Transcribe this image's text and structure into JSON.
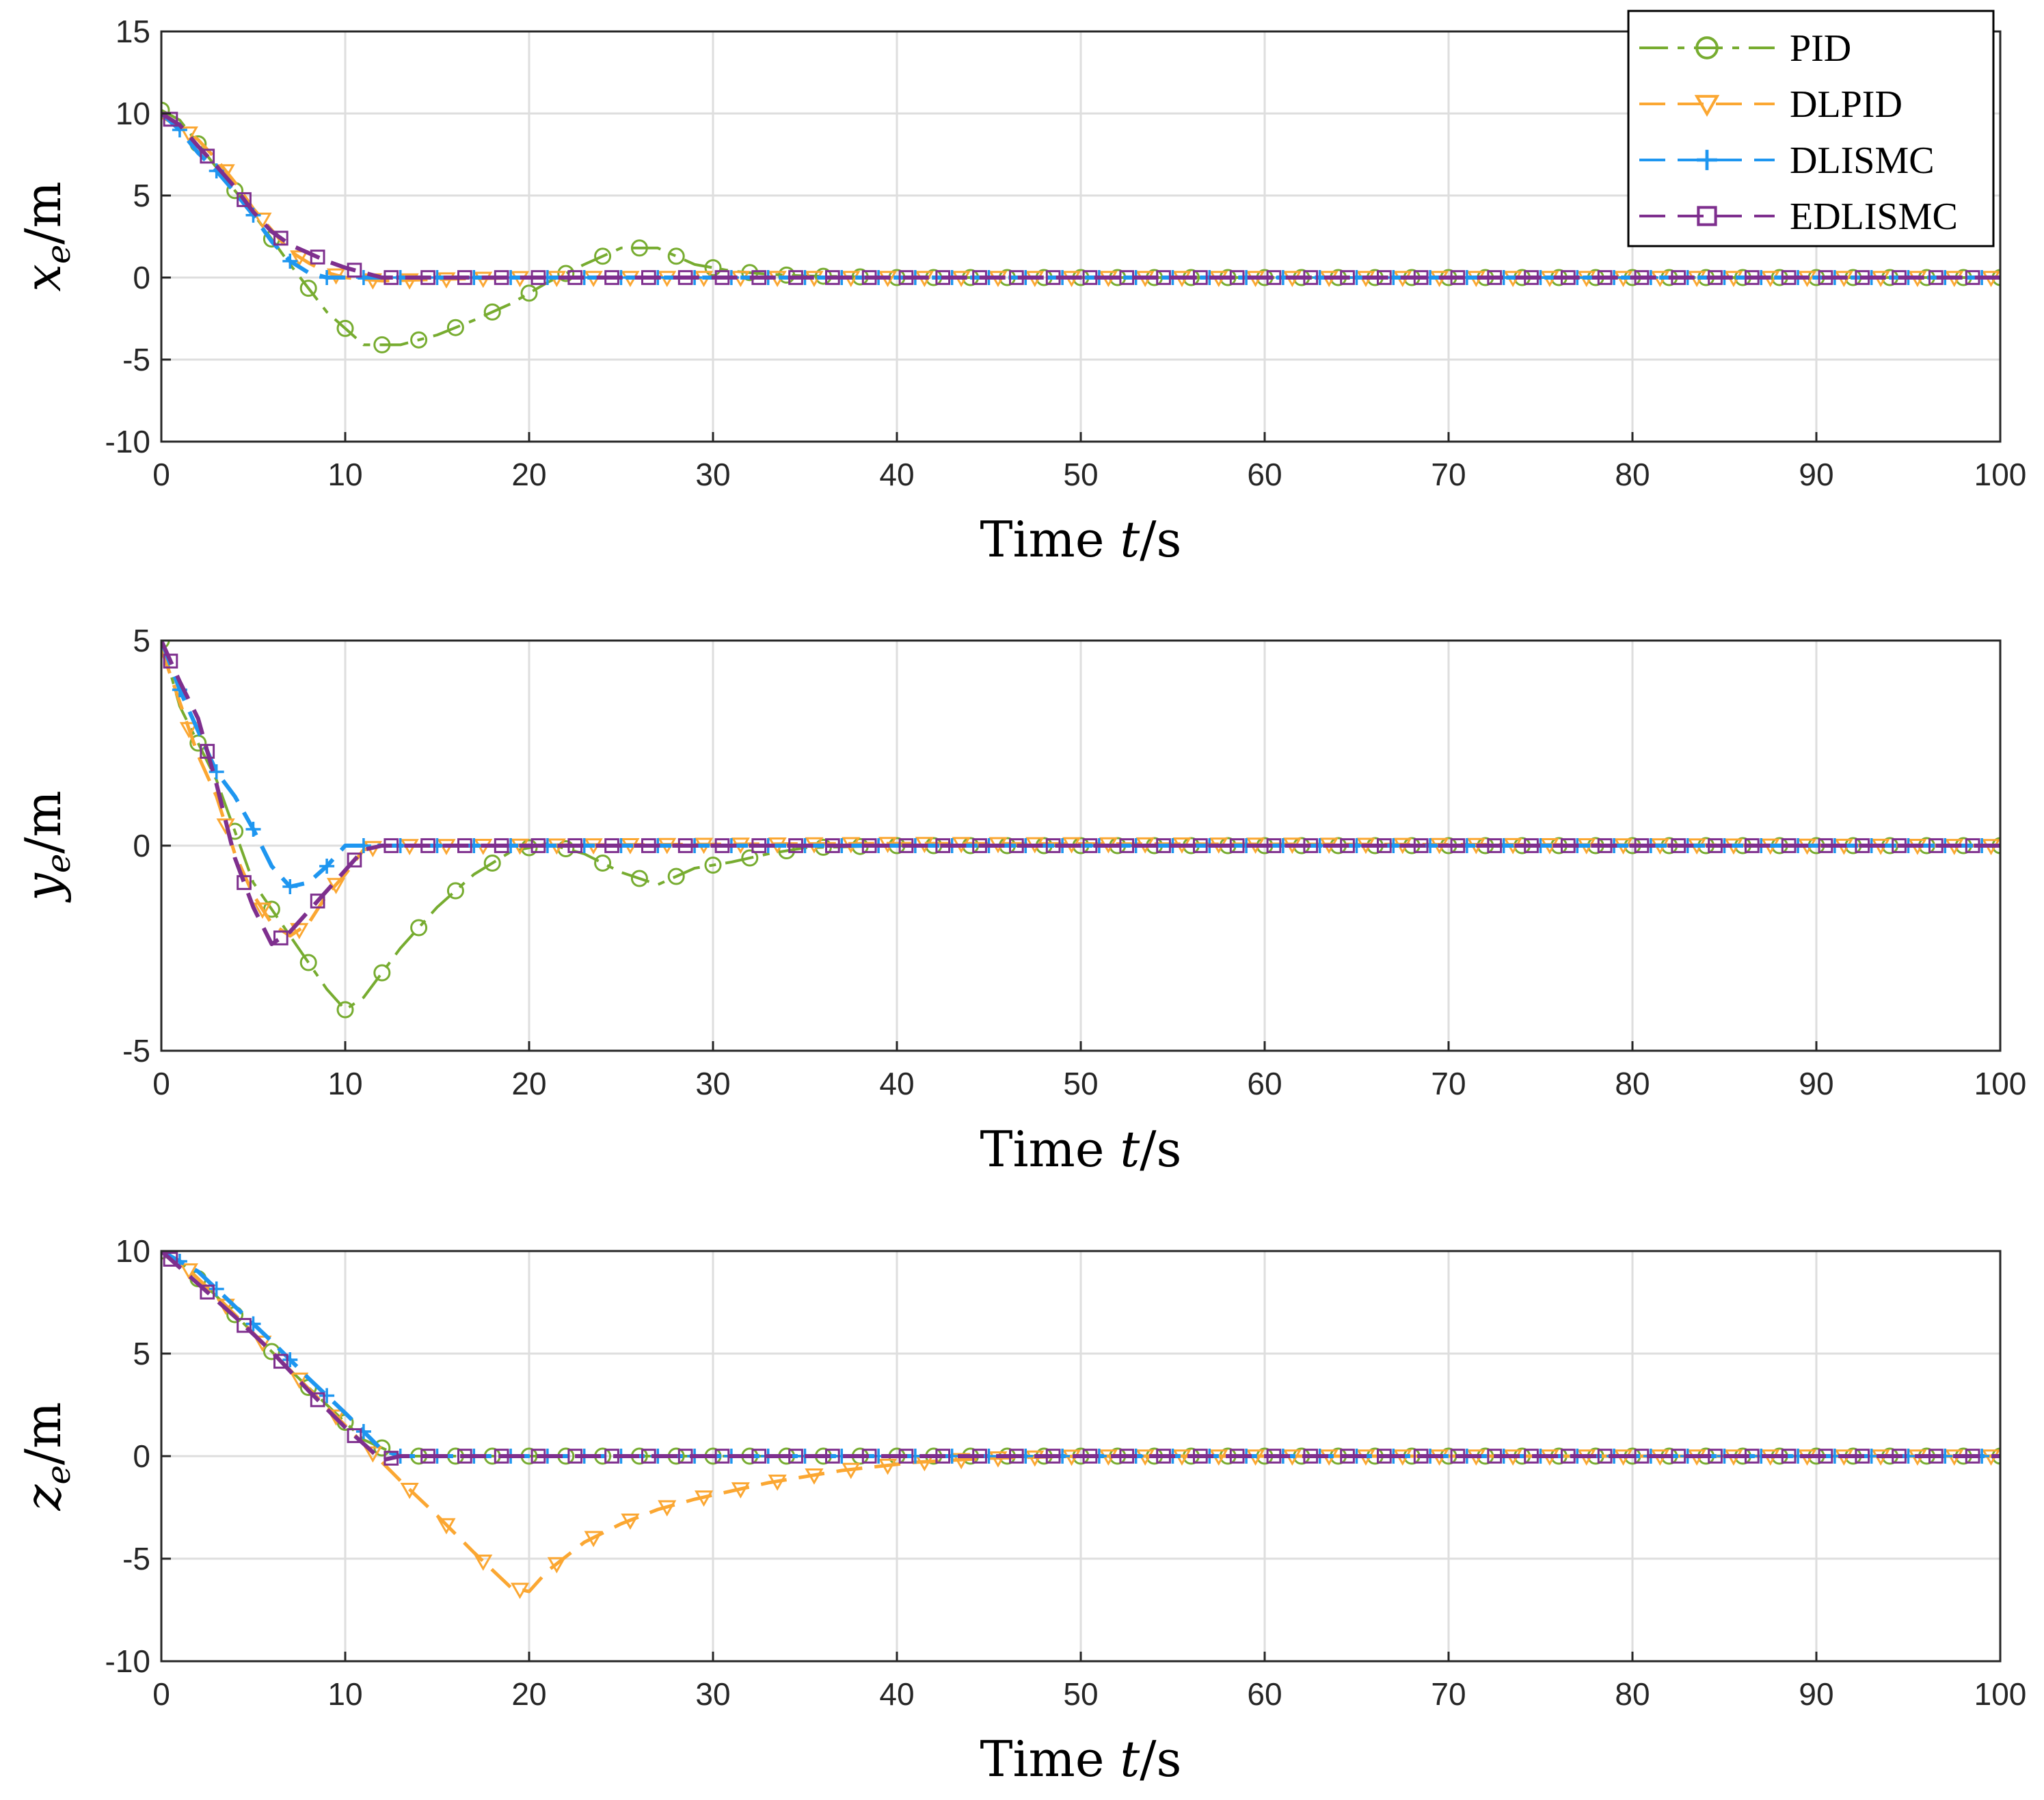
{
  "chart_data": [
    {
      "type": "line",
      "id": "xe",
      "title": "",
      "xlabel": {
        "main": "Time ",
        "var": "t",
        "unit": "/s"
      },
      "ylabel": {
        "var": "x",
        "sub": "e",
        "unit": "/m"
      },
      "xlim": [
        0,
        100
      ],
      "ylim": [
        -10,
        15
      ],
      "xticks": [
        "0",
        "10",
        "20",
        "30",
        "40",
        "50",
        "60",
        "70",
        "80",
        "90",
        "100"
      ],
      "yticks": [
        "-10",
        "-5",
        "0",
        "5",
        "10",
        "15"
      ],
      "grid": true,
      "legend": "top-right",
      "series": [
        {
          "name": "PID",
          "points": [
            [
              0,
              10.2
            ],
            [
              1,
              9.6
            ],
            [
              3,
              6.7
            ],
            [
              5,
              3.9
            ],
            [
              7,
              0.8
            ],
            [
              9,
              -2.1
            ],
            [
              11,
              -4.1
            ],
            [
              13,
              -4.1
            ],
            [
              15,
              -3.5
            ],
            [
              17,
              -2.6
            ],
            [
              19,
              -1.6
            ],
            [
              21,
              -0.3
            ],
            [
              23,
              0.8
            ],
            [
              25,
              1.8
            ],
            [
              27,
              1.8
            ],
            [
              29,
              0.8
            ],
            [
              31,
              0.4
            ],
            [
              33,
              0.2
            ],
            [
              35,
              0.1
            ],
            [
              40,
              0.0
            ],
            [
              100,
              0.0
            ]
          ]
        },
        {
          "name": "DLPID",
          "points": [
            [
              0,
              9.8
            ],
            [
              1,
              9.2
            ],
            [
              2,
              8.4
            ],
            [
              3,
              7.2
            ],
            [
              4,
              5.8
            ],
            [
              5,
              4.2
            ],
            [
              6,
              2.9
            ],
            [
              7,
              1.6
            ],
            [
              8,
              0.9
            ],
            [
              9,
              0.3
            ],
            [
              10,
              0.0
            ],
            [
              12,
              -0.2
            ],
            [
              15,
              -0.1
            ],
            [
              20,
              0.0
            ],
            [
              100,
              0.0
            ]
          ]
        },
        {
          "name": "DLISMC",
          "points": [
            [
              0,
              10.0
            ],
            [
              1,
              9.0
            ],
            [
              2,
              7.6
            ],
            [
              3,
              6.5
            ],
            [
              4,
              5.2
            ],
            [
              5,
              3.8
            ],
            [
              6,
              2.2
            ],
            [
              7,
              1.0
            ],
            [
              8,
              0.3
            ],
            [
              9,
              0.0
            ],
            [
              10,
              0.0
            ],
            [
              100,
              0.0
            ]
          ]
        },
        {
          "name": "EDLISMC",
          "points": [
            [
              0,
              10.0
            ],
            [
              1,
              9.3
            ],
            [
              2,
              8.0
            ],
            [
              3,
              6.8
            ],
            [
              4,
              5.5
            ],
            [
              5,
              4.0
            ],
            [
              6,
              2.8
            ],
            [
              7,
              2.0
            ],
            [
              8,
              1.5
            ],
            [
              9,
              1.0
            ],
            [
              10,
              0.6
            ],
            [
              12,
              0.0
            ],
            [
              100,
              0.0
            ]
          ]
        }
      ]
    },
    {
      "type": "line",
      "id": "ye",
      "title": "",
      "xlabel": {
        "main": "Time ",
        "var": "t",
        "unit": "/s"
      },
      "ylabel": {
        "var": "y",
        "sub": "e",
        "unit": "/m"
      },
      "xlim": [
        0,
        100
      ],
      "ylim": [
        -5,
        5
      ],
      "xticks": [
        "0",
        "10",
        "20",
        "30",
        "40",
        "50",
        "60",
        "70",
        "80",
        "90",
        "100"
      ],
      "yticks": [
        "-5",
        "0",
        "5"
      ],
      "grid": true,
      "series": [
        {
          "name": "PID",
          "points": [
            [
              0,
              5.0
            ],
            [
              1,
              3.4
            ],
            [
              3,
              1.6
            ],
            [
              5,
              -0.9
            ],
            [
              7,
              -2.2
            ],
            [
              9,
              -3.5
            ],
            [
              10,
              -4.0
            ],
            [
              11,
              -3.7
            ],
            [
              13,
              -2.5
            ],
            [
              15,
              -1.5
            ],
            [
              17,
              -0.7
            ],
            [
              19,
              -0.15
            ],
            [
              21,
              0.05
            ],
            [
              23,
              -0.2
            ],
            [
              25,
              -0.65
            ],
            [
              27,
              -0.95
            ],
            [
              29,
              -0.55
            ],
            [
              31,
              -0.4
            ],
            [
              33,
              -0.2
            ],
            [
              35,
              -0.05
            ],
            [
              40,
              0.0
            ],
            [
              100,
              0.0
            ]
          ]
        },
        {
          "name": "DLPID",
          "points": [
            [
              0,
              4.8
            ],
            [
              1,
              3.5
            ],
            [
              2,
              2.2
            ],
            [
              3,
              1.2
            ],
            [
              4,
              -0.2
            ],
            [
              5,
              -1.2
            ],
            [
              6,
              -1.9
            ],
            [
              7,
              -2.2
            ],
            [
              8,
              -1.9
            ],
            [
              9,
              -1.2
            ],
            [
              10,
              -0.7
            ],
            [
              11,
              -0.1
            ],
            [
              12,
              0.0
            ],
            [
              15,
              0.0
            ],
            [
              39,
              0.05
            ],
            [
              41,
              0.05
            ],
            [
              100,
              0.0
            ]
          ]
        },
        {
          "name": "DLISMC",
          "points": [
            [
              0,
              5.0
            ],
            [
              1,
              3.8
            ],
            [
              2,
              2.8
            ],
            [
              3,
              1.8
            ],
            [
              4,
              1.2
            ],
            [
              5,
              0.4
            ],
            [
              6,
              -0.5
            ],
            [
              7,
              -1.0
            ],
            [
              8,
              -0.9
            ],
            [
              9,
              -0.5
            ],
            [
              10,
              0.0
            ],
            [
              11,
              0.0
            ],
            [
              100,
              0.0
            ]
          ]
        },
        {
          "name": "EDLISMC",
          "points": [
            [
              0,
              5.0
            ],
            [
              1,
              4.0
            ],
            [
              2,
              3.1
            ],
            [
              3,
              1.5
            ],
            [
              4,
              -0.3
            ],
            [
              5,
              -1.5
            ],
            [
              6,
              -2.4
            ],
            [
              7,
              -2.1
            ],
            [
              8,
              -1.6
            ],
            [
              9,
              -1.1
            ],
            [
              10,
              -0.6
            ],
            [
              11,
              -0.1
            ],
            [
              12,
              0.0
            ],
            [
              100,
              0.0
            ]
          ]
        }
      ]
    },
    {
      "type": "line",
      "id": "ze",
      "title": "",
      "xlabel": {
        "main": "Time ",
        "var": "t",
        "unit": "/s"
      },
      "ylabel": {
        "var": "z",
        "sub": "e",
        "unit": "/m"
      },
      "xlim": [
        0,
        100
      ],
      "ylim": [
        -10,
        10
      ],
      "xticks": [
        "0",
        "10",
        "20",
        "30",
        "40",
        "50",
        "60",
        "70",
        "80",
        "90",
        "100"
      ],
      "yticks": [
        "-10",
        "-5",
        "0",
        "5",
        "10"
      ],
      "grid": true,
      "series": [
        {
          "name": "PID",
          "points": [
            [
              0,
              10.0
            ],
            [
              1,
              9.5
            ],
            [
              3,
              7.8
            ],
            [
              5,
              6.0
            ],
            [
              7,
              4.2
            ],
            [
              9,
              2.5
            ],
            [
              11,
              0.8
            ],
            [
              13,
              0.0
            ],
            [
              100,
              0.0
            ]
          ]
        },
        {
          "name": "DLPID",
          "points": [
            [
              0,
              10.0
            ],
            [
              1,
              9.5
            ],
            [
              3,
              7.8
            ],
            [
              5,
              6.0
            ],
            [
              7,
              4.2
            ],
            [
              9,
              2.4
            ],
            [
              11,
              0.6
            ],
            [
              13,
              -1.2
            ],
            [
              15,
              -2.9
            ],
            [
              17,
              -4.7
            ],
            [
              19,
              -6.4
            ],
            [
              20,
              -6.6
            ],
            [
              21,
              -5.6
            ],
            [
              23,
              -4.2
            ],
            [
              25,
              -3.3
            ],
            [
              27,
              -2.6
            ],
            [
              29,
              -2.1
            ],
            [
              31,
              -1.7
            ],
            [
              33,
              -1.3
            ],
            [
              35,
              -1.0
            ],
            [
              37,
              -0.7
            ],
            [
              39,
              -0.5
            ],
            [
              41,
              -0.3
            ],
            [
              43,
              -0.2
            ],
            [
              45,
              -0.1
            ],
            [
              50,
              0.0
            ],
            [
              100,
              0.0
            ]
          ]
        },
        {
          "name": "DLISMC",
          "points": [
            [
              0,
              10.0
            ],
            [
              2,
              9.0
            ],
            [
              4,
              7.3
            ],
            [
              6,
              5.6
            ],
            [
              8,
              3.8
            ],
            [
              10,
              2.1
            ],
            [
              12,
              0.3
            ],
            [
              13,
              0.0
            ],
            [
              100,
              0.0
            ]
          ]
        },
        {
          "name": "EDLISMC",
          "points": [
            [
              0,
              10.0
            ],
            [
              2,
              8.4
            ],
            [
              4,
              6.8
            ],
            [
              6,
              5.1
            ],
            [
              8,
              3.2
            ],
            [
              10,
              1.4
            ],
            [
              12,
              -0.2
            ],
            [
              13,
              0.0
            ],
            [
              100,
              0.0
            ]
          ]
        }
      ]
    }
  ],
  "legend_items": [
    "PID",
    "DLPID",
    "DLISMC",
    "EDLISMC"
  ],
  "styles": {
    "PID": {
      "color": "#77AC30",
      "marker": "circle-icon"
    },
    "DLPID": {
      "color": "#FBA732",
      "marker": "triangle-down-icon"
    },
    "DLISMC": {
      "color": "#1E96F0",
      "marker": "plus-icon"
    },
    "EDLISMC": {
      "color": "#7E2F8E",
      "marker": "square-icon"
    }
  }
}
